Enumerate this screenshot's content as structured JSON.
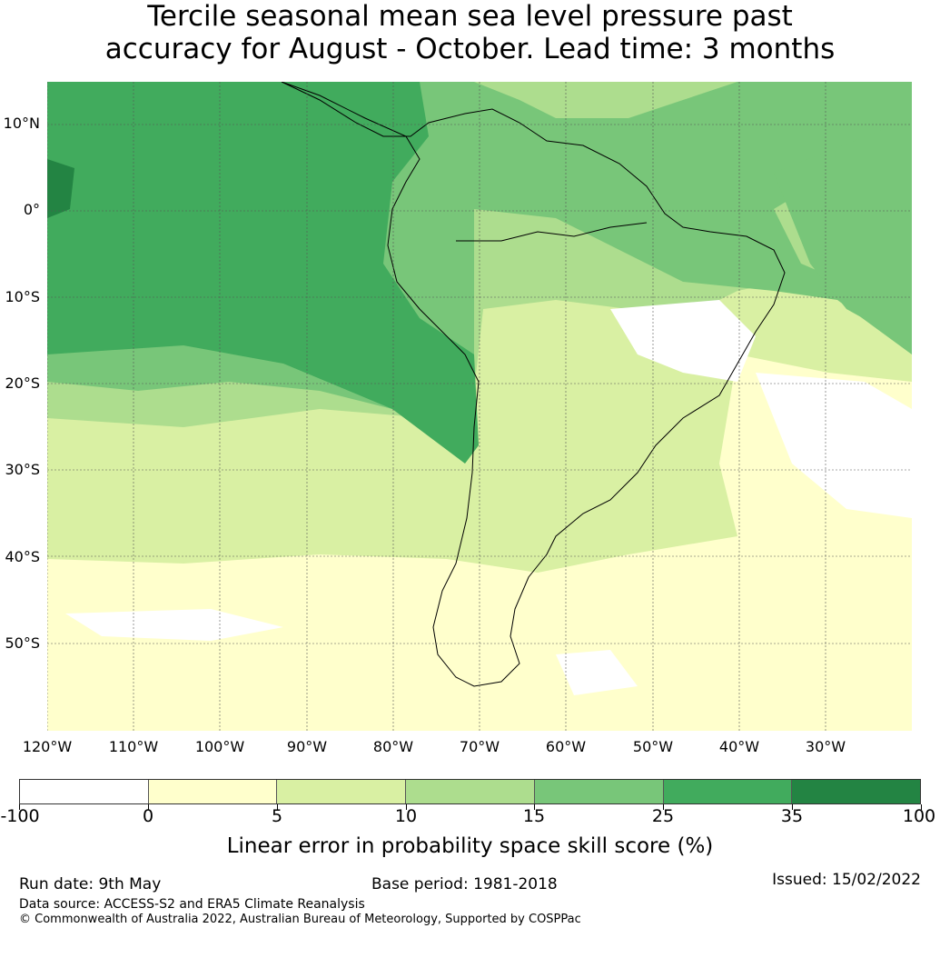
{
  "title_line1": "Tercile seasonal mean sea level pressure past",
  "title_line2": "accuracy for August - October. Lead time: 3 months",
  "map": {
    "lat_labels": [
      "10°N",
      "0°",
      "10°S",
      "20°S",
      "30°S",
      "40°S",
      "50°S"
    ],
    "lon_labels": [
      "120°W",
      "110°W",
      "100°W",
      "90°W",
      "80°W",
      "70°W",
      "60°W",
      "50°W",
      "40°W",
      "30°W"
    ]
  },
  "colorbar": {
    "colors": [
      "#ffffff",
      "#ffffcc",
      "#d9f0a3",
      "#addd8e",
      "#78c679",
      "#41ab5d",
      "#238443"
    ],
    "ticks": [
      "-100",
      "0",
      "5",
      "10",
      "15",
      "25",
      "35",
      "100"
    ],
    "label": "Linear error in probability space skill score (%)"
  },
  "footer": {
    "run_date": "Run date: 9th May",
    "base_period": "Base period: 1981-2018",
    "issued": "Issued: 15/02/2022",
    "data_source": "Data source: ACCESS-S2 and ERA5 Climate Reanalysis",
    "copyright": "© Commonwealth of Australia 2022, Australian Bureau of Meteorology, Supported by COSPPac"
  }
}
